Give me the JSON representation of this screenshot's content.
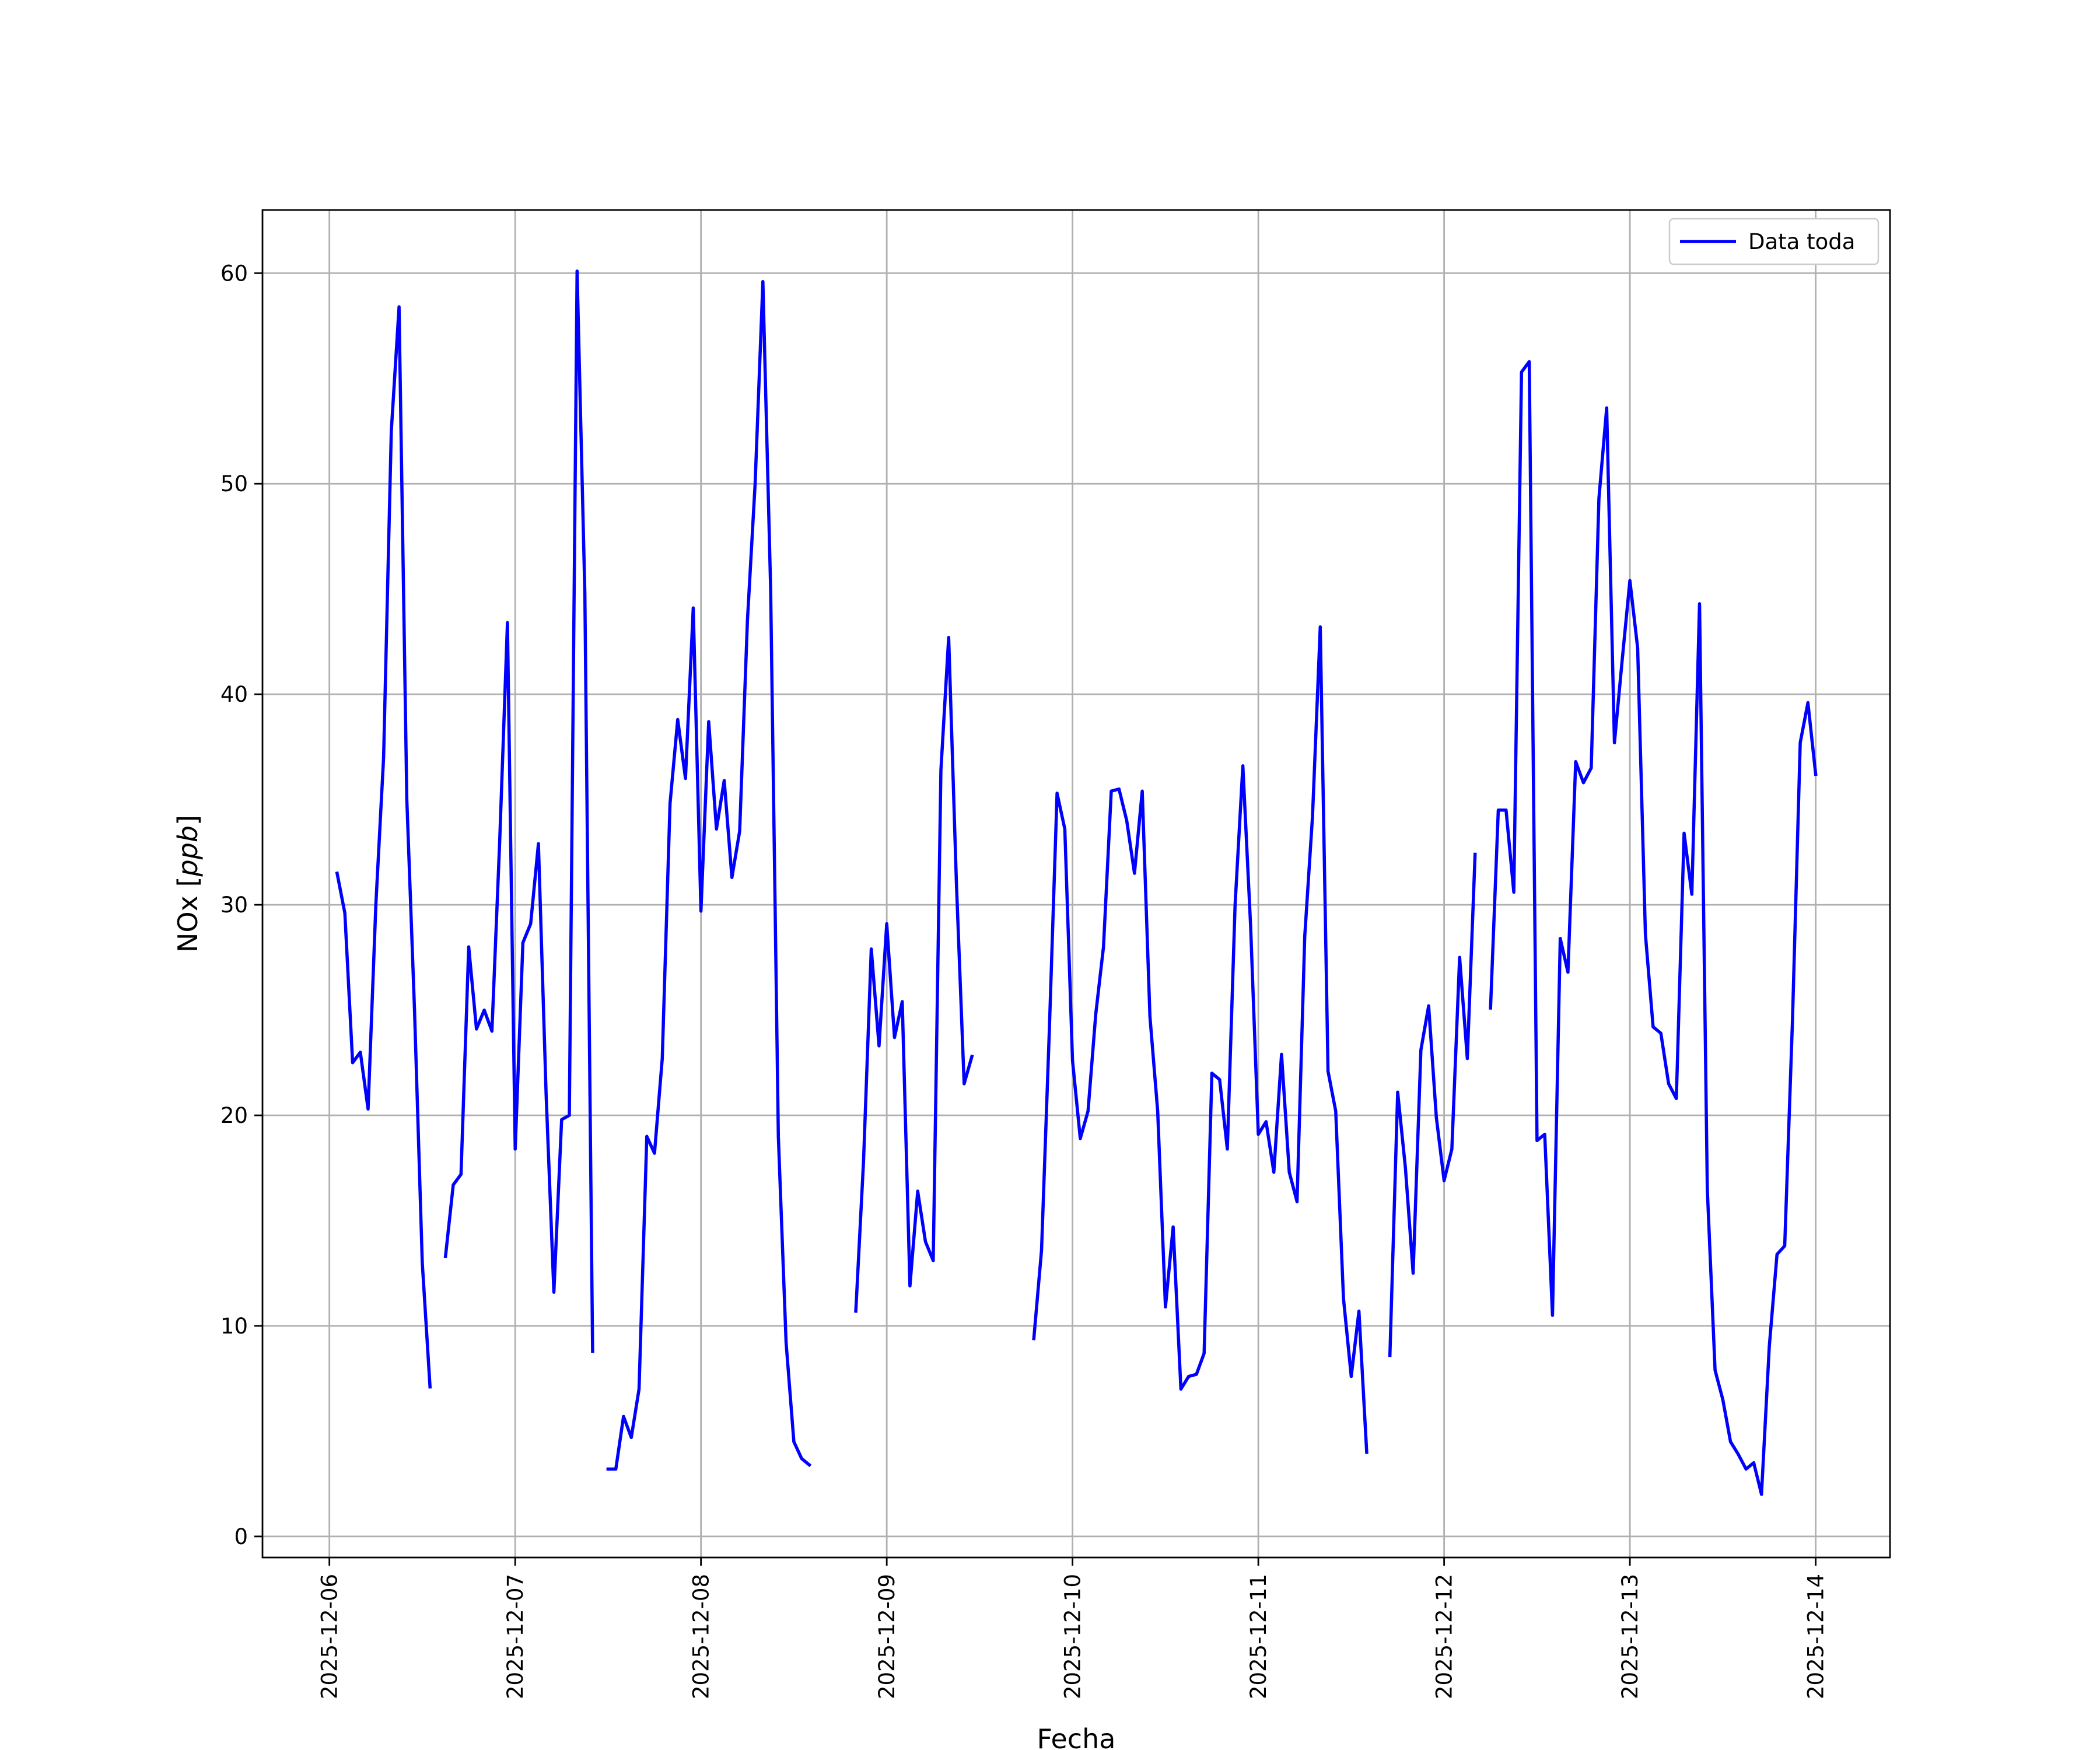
{
  "chart_data": {
    "type": "line",
    "title": "",
    "xlabel": "Fecha",
    "ylabel": "NOx [ppb]",
    "ylabel_parts": {
      "text": "NOx [",
      "unit": "ppb",
      "close": "]"
    },
    "xlim_days": [
      -0.36,
      8.4
    ],
    "ylim": [
      -1,
      63
    ],
    "grid": true,
    "legend_position": "upper right",
    "x_ticks": [
      "2025-12-06",
      "2025-12-07",
      "2025-12-08",
      "2025-12-09",
      "2025-12-10",
      "2025-12-11",
      "2025-12-12",
      "2025-12-13",
      "2025-12-14"
    ],
    "y_ticks": [
      0,
      10,
      20,
      30,
      40,
      50,
      60
    ],
    "series": [
      {
        "name": "Data toda",
        "color": "#0000ff",
        "x": [
          "2025-12-06 01:00",
          "2025-12-06 02:00",
          "2025-12-06 03:00",
          "2025-12-06 04:00",
          "2025-12-06 05:00",
          "2025-12-06 06:00",
          "2025-12-06 07:00",
          "2025-12-06 08:00",
          "2025-12-06 09:00",
          "2025-12-06 10:00",
          "2025-12-06 11:00",
          "2025-12-06 12:00",
          "2025-12-06 13:00",
          "2025-12-06 15:00",
          "2025-12-06 16:00",
          "2025-12-06 17:00",
          "2025-12-06 18:00",
          "2025-12-06 19:00",
          "2025-12-06 20:00",
          "2025-12-06 21:00",
          "2025-12-06 22:00",
          "2025-12-06 23:00",
          "2025-12-07 00:00",
          "2025-12-07 01:00",
          "2025-12-07 02:00",
          "2025-12-07 03:00",
          "2025-12-07 04:00",
          "2025-12-07 05:00",
          "2025-12-07 06:00",
          "2025-12-07 07:00",
          "2025-12-07 08:00",
          "2025-12-07 09:00",
          "2025-12-07 10:00",
          "2025-12-07 12:00",
          "2025-12-07 13:00",
          "2025-12-07 14:00",
          "2025-12-07 15:00",
          "2025-12-07 16:00",
          "2025-12-07 17:00",
          "2025-12-07 18:00",
          "2025-12-07 19:00",
          "2025-12-07 20:00",
          "2025-12-07 21:00",
          "2025-12-07 22:00",
          "2025-12-07 23:00",
          "2025-12-08 00:00",
          "2025-12-08 01:00",
          "2025-12-08 02:00",
          "2025-12-08 03:00",
          "2025-12-08 04:00",
          "2025-12-08 05:00",
          "2025-12-08 06:00",
          "2025-12-08 07:00",
          "2025-12-08 08:00",
          "2025-12-08 09:00",
          "2025-12-08 10:00",
          "2025-12-08 11:00",
          "2025-12-08 12:00",
          "2025-12-08 13:00",
          "2025-12-08 14:00",
          "2025-12-08 20:00",
          "2025-12-08 21:00",
          "2025-12-08 22:00",
          "2025-12-08 23:00",
          "2025-12-09 00:00",
          "2025-12-09 01:00",
          "2025-12-09 02:00",
          "2025-12-09 03:00",
          "2025-12-09 04:00",
          "2025-12-09 05:00",
          "2025-12-09 06:00",
          "2025-12-09 07:00",
          "2025-12-09 08:00",
          "2025-12-09 09:00",
          "2025-12-09 10:00",
          "2025-12-09 11:00",
          "2025-12-09 19:00",
          "2025-12-09 20:00",
          "2025-12-09 21:00",
          "2025-12-09 22:00",
          "2025-12-09 23:00",
          "2025-12-10 00:00",
          "2025-12-10 01:00",
          "2025-12-10 02:00",
          "2025-12-10 03:00",
          "2025-12-10 04:00",
          "2025-12-10 05:00",
          "2025-12-10 06:00",
          "2025-12-10 07:00",
          "2025-12-10 08:00",
          "2025-12-10 09:00",
          "2025-12-10 10:00",
          "2025-12-10 11:00",
          "2025-12-10 12:00",
          "2025-12-10 13:00",
          "2025-12-10 14:00",
          "2025-12-10 15:00",
          "2025-12-10 16:00",
          "2025-12-10 17:00",
          "2025-12-10 18:00",
          "2025-12-10 19:00",
          "2025-12-10 20:00",
          "2025-12-10 21:00",
          "2025-12-10 22:00",
          "2025-12-10 23:00",
          "2025-12-11 00:00",
          "2025-12-11 01:00",
          "2025-12-11 02:00",
          "2025-12-11 03:00",
          "2025-12-11 04:00",
          "2025-12-11 05:00",
          "2025-12-11 06:00",
          "2025-12-11 07:00",
          "2025-12-11 08:00",
          "2025-12-11 09:00",
          "2025-12-11 10:00",
          "2025-12-11 11:00",
          "2025-12-11 12:00",
          "2025-12-11 13:00",
          "2025-12-11 14:00",
          "2025-12-11 17:00",
          "2025-12-11 18:00",
          "2025-12-11 19:00",
          "2025-12-11 20:00",
          "2025-12-11 21:00",
          "2025-12-11 22:00",
          "2025-12-11 23:00",
          "2025-12-12 00:00",
          "2025-12-12 01:00",
          "2025-12-12 02:00",
          "2025-12-12 03:00",
          "2025-12-12 04:00",
          "2025-12-12 06:00",
          "2025-12-12 07:00",
          "2025-12-12 08:00",
          "2025-12-12 09:00",
          "2025-12-12 10:00",
          "2025-12-12 11:00",
          "2025-12-12 12:00",
          "2025-12-12 13:00",
          "2025-12-12 14:00",
          "2025-12-12 15:00",
          "2025-12-12 16:00",
          "2025-12-12 17:00",
          "2025-12-12 18:00",
          "2025-12-12 19:00",
          "2025-12-12 20:00",
          "2025-12-12 21:00",
          "2025-12-12 22:00",
          "2025-12-12 23:00",
          "2025-12-13 00:00",
          "2025-12-13 01:00",
          "2025-12-13 02:00",
          "2025-12-13 03:00",
          "2025-12-13 04:00",
          "2025-12-13 05:00",
          "2025-12-13 06:00",
          "2025-12-13 07:00",
          "2025-12-13 08:00",
          "2025-12-13 09:00",
          "2025-12-13 10:00",
          "2025-12-13 11:00",
          "2025-12-13 12:00",
          "2025-12-13 13:00",
          "2025-12-13 14:00",
          "2025-12-13 15:00",
          "2025-12-13 16:00",
          "2025-12-13 17:00",
          "2025-12-13 18:00",
          "2025-12-13 19:00",
          "2025-12-13 20:00",
          "2025-12-13 21:00",
          "2025-12-13 22:00",
          "2025-12-13 23:00",
          "2025-12-14 00:00"
        ],
        "y": [
          31.5,
          29.6,
          22.5,
          23.0,
          20.3,
          30.0,
          37.0,
          52.5,
          58.4,
          35.0,
          25.0,
          13.0,
          7.1,
          13.3,
          16.7,
          17.2,
          28.0,
          24.1,
          25.0,
          24.0,
          33.0,
          43.4,
          18.4,
          28.2,
          29.1,
          32.9,
          21.0,
          11.6,
          19.8,
          20.0,
          60.1,
          44.8,
          8.8,
          3.2,
          3.2,
          5.7,
          4.7,
          7.0,
          19.0,
          18.2,
          22.7,
          34.8,
          38.8,
          36.0,
          44.1,
          29.7,
          38.7,
          33.6,
          35.9,
          31.3,
          33.5,
          43.5,
          50.0,
          59.6,
          45.0,
          19.0,
          9.2,
          4.5,
          3.7,
          3.4,
          10.7,
          17.8,
          27.9,
          23.3,
          29.1,
          23.7,
          25.4,
          11.9,
          16.4,
          14.0,
          13.1,
          36.4,
          42.7,
          31.0,
          21.5,
          22.8,
          9.4,
          13.6,
          24.0,
          35.3,
          33.6,
          22.6,
          18.9,
          20.2,
          24.8,
          28.0,
          35.4,
          35.5,
          34.0,
          31.5,
          35.4,
          24.7,
          20.2,
          10.9,
          14.7,
          7.0,
          7.6,
          7.7,
          8.7,
          22.0,
          21.7,
          18.4,
          30.0,
          36.6,
          29.0,
          19.1,
          19.7,
          17.3,
          22.9,
          17.3,
          15.9,
          28.5,
          34.2,
          43.2,
          22.1,
          20.2,
          11.3,
          7.6,
          10.7,
          4.0,
          8.6,
          21.1,
          17.5,
          12.5,
          23.1,
          25.2,
          19.9,
          16.9,
          18.4,
          27.5,
          22.7,
          32.4,
          25.1,
          34.5,
          34.5,
          30.6,
          55.3,
          55.8,
          18.8,
          19.1,
          10.5,
          28.4,
          26.8,
          36.8,
          35.8,
          36.5,
          49.3,
          53.6,
          37.7,
          41.6,
          45.4,
          42.2,
          28.6,
          24.2,
          23.9,
          21.5,
          20.8,
          33.4,
          30.5,
          44.3,
          16.5,
          7.9,
          6.5,
          4.5,
          3.9,
          3.2,
          3.5,
          2.0,
          9.0,
          13.4,
          13.8,
          24.5,
          37.7,
          39.6,
          36.2
        ]
      }
    ]
  }
}
